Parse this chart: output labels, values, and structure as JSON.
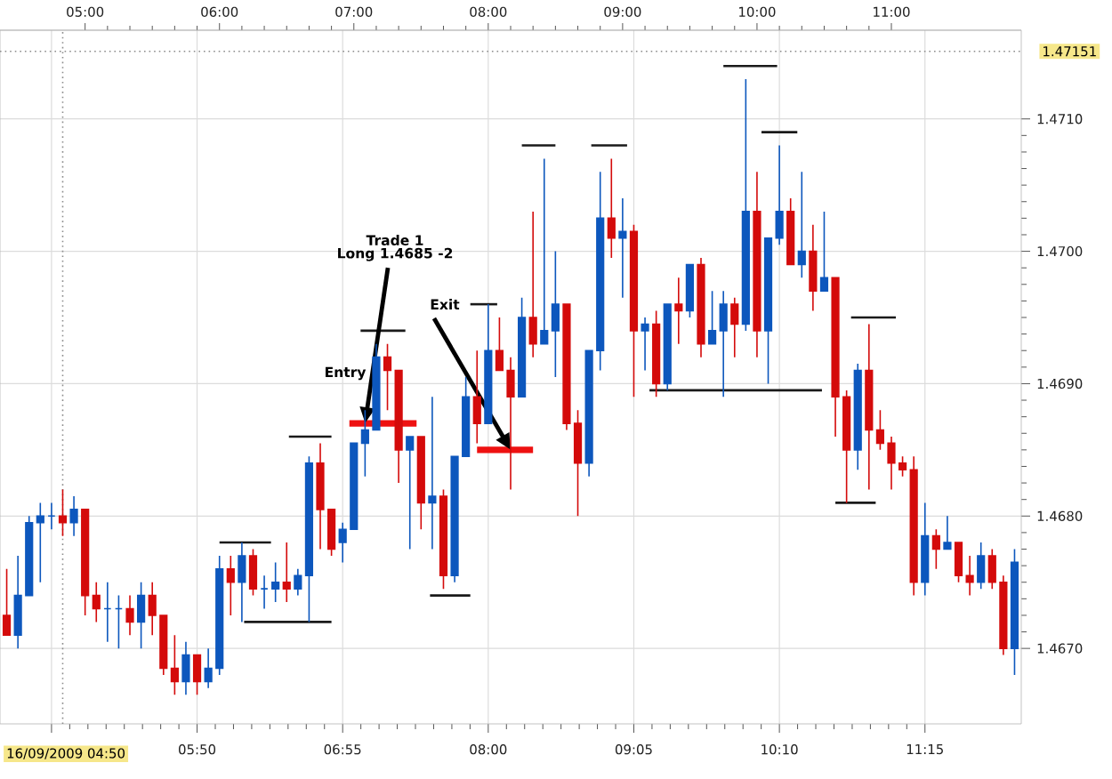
{
  "chart_data": {
    "type": "candlestick",
    "series": [
      {
        "x": [
          "2009-09-16T04:25",
          "2009-09-16T04:30",
          "2009-09-16T04:35",
          "2009-09-16T04:40",
          "2009-09-16T04:45",
          "2009-09-16T04:50",
          "2009-09-16T04:55",
          "2009-09-16T05:00",
          "2009-09-16T05:05",
          "2009-09-16T05:10",
          "2009-09-16T05:15",
          "2009-09-16T05:20",
          "2009-09-16T05:25",
          "2009-09-16T05:30",
          "2009-09-16T05:35",
          "2009-09-16T05:40",
          "2009-09-16T05:45",
          "2009-09-16T05:50",
          "2009-09-16T05:55",
          "2009-09-16T06:00",
          "2009-09-16T06:05",
          "2009-09-16T06:10",
          "2009-09-16T06:15",
          "2009-09-16T06:20",
          "2009-09-16T06:25",
          "2009-09-16T06:30",
          "2009-09-16T06:35",
          "2009-09-16T06:40",
          "2009-09-16T06:45",
          "2009-09-16T06:50",
          "2009-09-16T06:55",
          "2009-09-16T07:00",
          "2009-09-16T07:05",
          "2009-09-16T07:10",
          "2009-09-16T07:15",
          "2009-09-16T07:20",
          "2009-09-16T07:25",
          "2009-09-16T07:30",
          "2009-09-16T07:35",
          "2009-09-16T07:40",
          "2009-09-16T07:45",
          "2009-09-16T07:50",
          "2009-09-16T07:55",
          "2009-09-16T08:00",
          "2009-09-16T08:05",
          "2009-09-16T08:10",
          "2009-09-16T08:15",
          "2009-09-16T08:20",
          "2009-09-16T08:25",
          "2009-09-16T08:30",
          "2009-09-16T08:35",
          "2009-09-16T08:40",
          "2009-09-16T08:45",
          "2009-09-16T08:50",
          "2009-09-16T08:55",
          "2009-09-16T09:00",
          "2009-09-16T09:05",
          "2009-09-16T09:10",
          "2009-09-16T09:15",
          "2009-09-16T09:20",
          "2009-09-16T09:25",
          "2009-09-16T09:30",
          "2009-09-16T09:35",
          "2009-09-16T09:40",
          "2009-09-16T09:45",
          "2009-09-16T09:50",
          "2009-09-16T09:55",
          "2009-09-16T10:00",
          "2009-09-16T10:05",
          "2009-09-16T10:10",
          "2009-09-16T10:15",
          "2009-09-16T10:20",
          "2009-09-16T10:25",
          "2009-09-16T10:30",
          "2009-09-16T10:35",
          "2009-09-16T10:40",
          "2009-09-16T10:45",
          "2009-09-16T10:50",
          "2009-09-16T10:55",
          "2009-09-16T11:00",
          "2009-09-16T11:05",
          "2009-09-16T11:10",
          "2009-09-16T11:15",
          "2009-09-16T11:20",
          "2009-09-16T11:25",
          "2009-09-16T11:30",
          "2009-09-16T11:35",
          "2009-09-16T11:40",
          "2009-09-16T11:45",
          "2009-09-16T11:50",
          "2009-09-16T11:55"
        ],
        "ohlc": [
          [
            1.46725,
            1.4676,
            1.4671,
            1.4671
          ],
          [
            1.4671,
            1.4677,
            1.467,
            1.4674
          ],
          [
            1.4674,
            1.468,
            1.4674,
            1.46795
          ],
          [
            1.46795,
            1.4681,
            1.4675,
            1.468
          ],
          [
            1.468,
            1.4681,
            1.4679,
            1.468
          ],
          [
            1.468,
            1.4682,
            1.46785,
            1.46795
          ],
          [
            1.46795,
            1.46815,
            1.46785,
            1.46805
          ],
          [
            1.46805,
            1.46805,
            1.46725,
            1.4674
          ],
          [
            1.4674,
            1.4675,
            1.4672,
            1.4673
          ],
          [
            1.4673,
            1.4675,
            1.46705,
            1.4673
          ],
          [
            1.4673,
            1.4674,
            1.467,
            1.4673
          ],
          [
            1.4673,
            1.4674,
            1.4671,
            1.4672
          ],
          [
            1.4672,
            1.4675,
            1.467,
            1.4674
          ],
          [
            1.4674,
            1.4675,
            1.4671,
            1.46725
          ],
          [
            1.46725,
            1.46725,
            1.4668,
            1.46685
          ],
          [
            1.46685,
            1.4671,
            1.46665,
            1.46675
          ],
          [
            1.46675,
            1.46705,
            1.46665,
            1.46695
          ],
          [
            1.46695,
            1.46695,
            1.46665,
            1.46675
          ],
          [
            1.46675,
            1.467,
            1.4667,
            1.46685
          ],
          [
            1.46685,
            1.4677,
            1.4668,
            1.4676
          ],
          [
            1.4676,
            1.4677,
            1.46725,
            1.4675
          ],
          [
            1.4675,
            1.4678,
            1.4672,
            1.4677
          ],
          [
            1.4677,
            1.46775,
            1.4674,
            1.46745
          ],
          [
            1.46745,
            1.46755,
            1.4673,
            1.46745
          ],
          [
            1.46745,
            1.46765,
            1.46735,
            1.4675
          ],
          [
            1.4675,
            1.4678,
            1.46735,
            1.46745
          ],
          [
            1.46745,
            1.4676,
            1.4674,
            1.46755
          ],
          [
            1.46755,
            1.46845,
            1.4672,
            1.4684
          ],
          [
            1.4684,
            1.46855,
            1.46775,
            1.46805
          ],
          [
            1.46805,
            1.46805,
            1.4677,
            1.46775
          ],
          [
            1.4678,
            1.46795,
            1.46765,
            1.4679
          ],
          [
            1.4679,
            1.46855,
            1.4679,
            1.46855
          ],
          [
            1.46855,
            1.4688,
            1.4683,
            1.46865
          ],
          [
            1.46865,
            1.4693,
            1.46865,
            1.4692
          ],
          [
            1.4692,
            1.4693,
            1.4688,
            1.4691
          ],
          [
            1.4691,
            1.4691,
            1.46825,
            1.4685
          ],
          [
            1.4685,
            1.4686,
            1.46775,
            1.4686
          ],
          [
            1.4686,
            1.4686,
            1.4679,
            1.4681
          ],
          [
            1.4681,
            1.4689,
            1.46775,
            1.46815
          ],
          [
            1.46815,
            1.4682,
            1.46745,
            1.46755
          ],
          [
            1.46755,
            1.46845,
            1.4675,
            1.46845
          ],
          [
            1.46845,
            1.46905,
            1.46845,
            1.4689
          ],
          [
            1.4689,
            1.46925,
            1.46855,
            1.4687
          ],
          [
            1.4687,
            1.4696,
            1.4687,
            1.46925
          ],
          [
            1.46925,
            1.4695,
            1.4691,
            1.4691
          ],
          [
            1.4691,
            1.4692,
            1.4682,
            1.4689
          ],
          [
            1.4689,
            1.46965,
            1.4689,
            1.4695
          ],
          [
            1.4695,
            1.4703,
            1.4692,
            1.4693
          ],
          [
            1.4693,
            1.4707,
            1.4693,
            1.4694
          ],
          [
            1.4694,
            1.47,
            1.46905,
            1.4696
          ],
          [
            1.4696,
            1.4696,
            1.46865,
            1.4687
          ],
          [
            1.4687,
            1.4688,
            1.468,
            1.4684
          ],
          [
            1.4684,
            1.46925,
            1.4683,
            1.46925
          ],
          [
            1.46925,
            1.4706,
            1.4691,
            1.47025
          ],
          [
            1.47025,
            1.4707,
            1.46995,
            1.4701
          ],
          [
            1.4701,
            1.4704,
            1.46965,
            1.47015
          ],
          [
            1.47015,
            1.4702,
            1.4689,
            1.4694
          ],
          [
            1.4694,
            1.4695,
            1.4691,
            1.46945
          ],
          [
            1.46945,
            1.46955,
            1.4689,
            1.469
          ],
          [
            1.469,
            1.4696,
            1.46895,
            1.4696
          ],
          [
            1.4696,
            1.4698,
            1.4693,
            1.46955
          ],
          [
            1.46955,
            1.4699,
            1.4695,
            1.4699
          ],
          [
            1.4699,
            1.46995,
            1.4692,
            1.4693
          ],
          [
            1.4693,
            1.4697,
            1.4693,
            1.4694
          ],
          [
            1.4694,
            1.4697,
            1.4689,
            1.4696
          ],
          [
            1.4696,
            1.46965,
            1.4692,
            1.46945
          ],
          [
            1.46945,
            1.4713,
            1.4694,
            1.4703
          ],
          [
            1.4703,
            1.4706,
            1.4692,
            1.4694
          ],
          [
            1.4694,
            1.4701,
            1.469,
            1.4701
          ],
          [
            1.4701,
            1.4708,
            1.47005,
            1.4703
          ],
          [
            1.4703,
            1.4704,
            1.4699,
            1.4699
          ],
          [
            1.4699,
            1.4706,
            1.4698,
            1.47
          ],
          [
            1.47,
            1.4702,
            1.46955,
            1.4697
          ],
          [
            1.4697,
            1.4703,
            1.4697,
            1.4698
          ],
          [
            1.4698,
            1.4698,
            1.4686,
            1.4689
          ],
          [
            1.4689,
            1.46895,
            1.4681,
            1.4685
          ],
          [
            1.4685,
            1.46915,
            1.46835,
            1.4691
          ],
          [
            1.4691,
            1.46945,
            1.4682,
            1.46865
          ],
          [
            1.46865,
            1.4688,
            1.4685,
            1.46855
          ],
          [
            1.46855,
            1.4686,
            1.4682,
            1.4684
          ],
          [
            1.4684,
            1.46845,
            1.4683,
            1.46835
          ],
          [
            1.46835,
            1.46845,
            1.4674,
            1.4675
          ],
          [
            1.4675,
            1.4681,
            1.4674,
            1.46785
          ],
          [
            1.46785,
            1.4679,
            1.4676,
            1.46775
          ],
          [
            1.46775,
            1.468,
            1.46775,
            1.4678
          ],
          [
            1.4678,
            1.4678,
            1.4675,
            1.46755
          ],
          [
            1.46755,
            1.4677,
            1.4674,
            1.4675
          ],
          [
            1.4675,
            1.4678,
            1.46745,
            1.4677
          ],
          [
            1.4677,
            1.46775,
            1.46745,
            1.4675
          ],
          [
            1.4675,
            1.46755,
            1.46695,
            1.467
          ],
          [
            1.467,
            1.46775,
            1.4668,
            1.46765
          ]
        ],
        "colors": [
          "#d40b0b",
          "#0d57bd",
          "#0d57bd",
          "#0d57bd",
          "#0d57bd",
          "#d40b0b",
          "#0d57bd",
          "#d40b0b",
          "#d40b0b",
          "#0d57bd",
          "#0d57bd",
          "#d40b0b",
          "#0d57bd",
          "#d40b0b",
          "#d40b0b",
          "#d40b0b",
          "#0d57bd",
          "#d40b0b",
          "#0d57bd",
          "#0d57bd",
          "#d40b0b",
          "#0d57bd",
          "#d40b0b",
          "#0d57bd",
          "#0d57bd",
          "#d40b0b",
          "#0d57bd",
          "#0d57bd",
          "#d40b0b",
          "#d40b0b",
          "#0d57bd",
          "#0d57bd",
          "#0d57bd",
          "#0d57bd",
          "#d40b0b",
          "#d40b0b",
          "#0d57bd",
          "#d40b0b",
          "#0d57bd",
          "#d40b0b",
          "#0d57bd",
          "#0d57bd",
          "#d40b0b",
          "#0d57bd",
          "#d40b0b",
          "#d40b0b",
          "#0d57bd",
          "#d40b0b",
          "#0d57bd",
          "#0d57bd",
          "#d40b0b",
          "#d40b0b",
          "#0d57bd",
          "#0d57bd",
          "#d40b0b",
          "#0d57bd",
          "#d40b0b",
          "#0d57bd",
          "#d40b0b",
          "#0d57bd",
          "#d40b0b",
          "#0d57bd",
          "#d40b0b",
          "#0d57bd",
          "#0d57bd",
          "#d40b0b",
          "#0d57bd",
          "#d40b0b",
          "#0d57bd",
          "#0d57bd",
          "#d40b0b",
          "#0d57bd",
          "#d40b0b",
          "#0d57bd",
          "#d40b0b",
          "#d40b0b",
          "#0d57bd",
          "#d40b0b",
          "#d40b0b",
          "#d40b0b",
          "#d40b0b",
          "#d40b0b",
          "#0d57bd",
          "#d40b0b",
          "#0d57bd",
          "#d40b0b",
          "#d40b0b",
          "#0d57bd",
          "#d40b0b",
          "#d40b0b",
          "#0d57bd"
        ]
      },
      {
        "type": "line",
        "color": "#1a1a1a",
        "x": [
          "2009-09-16T06:00",
          "2009-09-16T06:23"
        ],
        "values": [
          1.4678,
          1.4678
        ]
      },
      {
        "type": "line",
        "color": "#1a1a1a",
        "x": [
          "2009-09-16T06:11",
          "2009-09-16T06:50"
        ],
        "values": [
          1.4672,
          1.4672
        ]
      },
      {
        "type": "line",
        "color": "#1a1a1a",
        "x": [
          "2009-09-16T06:31",
          "2009-09-16T06:50"
        ],
        "values": [
          1.4686,
          1.4686
        ]
      },
      {
        "type": "line",
        "color": "#1a1a1a",
        "x": [
          "2009-09-16T07:03",
          "2009-09-16T07:23"
        ],
        "values": [
          1.4694,
          1.4694
        ]
      },
      {
        "type": "line",
        "color": "#1a1a1a",
        "x": [
          "2009-09-16T07:34",
          "2009-09-16T07:52"
        ],
        "values": [
          1.4674,
          1.4674
        ]
      },
      {
        "type": "line",
        "color": "#1a1a1a",
        "x": [
          "2009-09-16T07:52",
          "2009-09-16T08:04"
        ],
        "values": [
          1.4696,
          1.4696
        ]
      },
      {
        "type": "line",
        "color": "#1a1a1a",
        "x": [
          "2009-09-16T08:15",
          "2009-09-16T08:30"
        ],
        "values": [
          1.4708,
          1.4708
        ]
      },
      {
        "type": "line",
        "color": "#1a1a1a",
        "x": [
          "2009-09-16T08:46",
          "2009-09-16T09:02"
        ],
        "values": [
          1.4708,
          1.4708
        ]
      },
      {
        "type": "line",
        "color": "#1a1a1a",
        "x": [
          "2009-09-16T09:12",
          "2009-09-16T10:29"
        ],
        "values": [
          1.46895,
          1.46895
        ]
      },
      {
        "type": "line",
        "color": "#1a1a1a",
        "x": [
          "2009-09-16T09:45",
          "2009-09-16T10:09"
        ],
        "values": [
          1.4714,
          1.4714
        ]
      },
      {
        "type": "line",
        "color": "#1a1a1a",
        "x": [
          "2009-09-16T10:02",
          "2009-09-16T10:18"
        ],
        "values": [
          1.4709,
          1.4709
        ]
      },
      {
        "type": "line",
        "color": "#1a1a1a",
        "x": [
          "2009-09-16T10:35",
          "2009-09-16T10:53"
        ],
        "values": [
          1.4681,
          1.4681
        ]
      },
      {
        "type": "line",
        "color": "#1a1a1a",
        "x": [
          "2009-09-16T10:42",
          "2009-09-16T11:02"
        ],
        "values": [
          1.4695,
          1.4695
        ]
      },
      {
        "type": "line",
        "color": "#ee1111",
        "x": [
          "2009-09-16T06:58",
          "2009-09-16T07:28"
        ],
        "values": [
          1.4687,
          1.4687
        ]
      },
      {
        "type": "line",
        "color": "#ee1111",
        "x": [
          "2009-09-16T07:55",
          "2009-09-16T08:20"
        ],
        "values": [
          1.4685,
          1.4685
        ]
      }
    ],
    "xlim": [
      "2009-09-16T04:22",
      "2009-09-16T11:58"
    ],
    "xticks": [
      {
        "value": "2009-09-16T04:45",
        "label": null
      },
      {
        "value": "2009-09-16T05:50",
        "label": "05:50"
      },
      {
        "value": "2009-09-16T06:55",
        "label": "06:55"
      },
      {
        "value": "2009-09-16T08:00",
        "label": "08:00"
      },
      {
        "value": "2009-09-16T09:05",
        "label": "09:05"
      },
      {
        "value": "2009-09-16T10:10",
        "label": "10:10"
      },
      {
        "value": "2009-09-16T11:15",
        "label": "11:15"
      }
    ],
    "x2lim": [
      "2009-09-16T04:22",
      "2009-09-16T11:58"
    ],
    "x2ticks": [
      {
        "value": "2009-09-16T05:00",
        "label": "05:00"
      },
      {
        "value": "2009-09-16T06:00",
        "label": "06:00"
      },
      {
        "value": "2009-09-16T07:00",
        "label": "07:00"
      },
      {
        "value": "2009-09-16T08:00",
        "label": "08:00"
      },
      {
        "value": "2009-09-16T09:00",
        "label": "09:00"
      },
      {
        "value": "2009-09-16T10:00",
        "label": "10:00"
      },
      {
        "value": "2009-09-16T11:00",
        "label": "11:00"
      }
    ],
    "ylim": [
      1.46643,
      1.47167
    ],
    "yticks": [
      {
        "value": 1.467,
        "label": "1.4670"
      },
      {
        "value": 1.468,
        "label": "1.4680"
      },
      {
        "value": 1.469,
        "label": "1.4690"
      },
      {
        "value": 1.47,
        "label": "1.4700"
      },
      {
        "value": 1.471,
        "label": "1.4710"
      }
    ],
    "grid": true,
    "ref_lines": [
      {
        "axis": "x",
        "value": "2009-09-16T04:50",
        "label": "16/09/2009 04:50",
        "line_style": "dotted",
        "color": "#8c8c8c"
      },
      {
        "axis": "y",
        "value": 1.47151,
        "label": "1.47151",
        "line_style": "dotted",
        "color": "#8c8c8c"
      }
    ],
    "annotations": [
      "Trade 1",
      {
        "text": "Long 1.4685 -2",
        "x": "2009-09-16T07:05",
        "y": 1.4687
      },
      "Entry",
      {
        "text": "Exit",
        "x": "2009-09-16T08:10",
        "y": 1.4685
      }
    ]
  }
}
